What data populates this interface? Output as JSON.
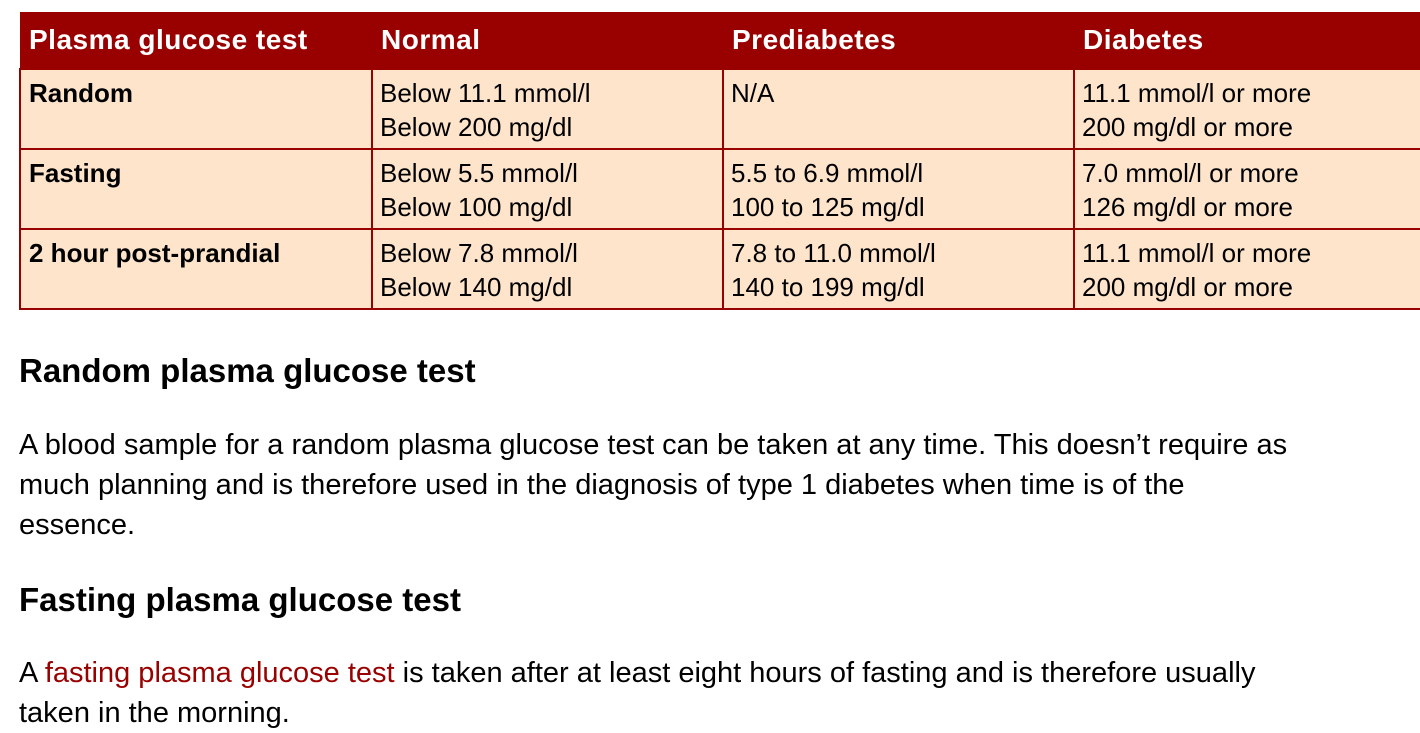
{
  "table": {
    "headers": [
      "Plasma glucose test",
      "Normal",
      "Prediabetes",
      "Diabetes"
    ],
    "rows": [
      {
        "label": "Random",
        "normal": [
          "Below 11.1 mmol/l",
          "Below 200 mg/dl"
        ],
        "prediabetes": [
          "N/A",
          ""
        ],
        "diabetes": [
          "11.1 mmol/l or more",
          "200 mg/dl or more"
        ]
      },
      {
        "label": "Fasting",
        "normal": [
          "Below 5.5 mmol/l",
          "Below 100 mg/dl"
        ],
        "prediabetes": [
          "5.5 to 6.9 mmol/l",
          "100 to 125 mg/dl"
        ],
        "diabetes": [
          "7.0 mmol/l or more",
          "126 mg/dl or more"
        ]
      },
      {
        "label": "2 hour post-prandial",
        "normal": [
          "Below 7.8 mmol/l",
          "Below 140 mg/dl"
        ],
        "prediabetes": [
          "7.8 to 11.0 mmol/l",
          "140 to 199 mg/dl"
        ],
        "diabetes": [
          "11.1 mmol/l or more",
          "200 mg/dl or more"
        ]
      }
    ]
  },
  "sections": {
    "random": {
      "heading": "Random plasma glucose test",
      "body": [
        "A blood sample for a random plasma glucose test can be taken at any time. This doesn’t require as",
        "much planning and is therefore used in the diagnosis of type 1 diabetes when time is of the",
        "essence."
      ]
    },
    "fasting": {
      "heading": "Fasting plasma glucose test",
      "body_prefix": "A ",
      "link_text": "fasting plasma glucose test",
      "body_suffix": " is taken after at least eight hours of fasting and is therefore usually",
      "body_line2": "taken in the morning."
    }
  },
  "colors": {
    "header_bg": "#990000",
    "cell_bg": "#fde4cb",
    "link": "#990000"
  }
}
